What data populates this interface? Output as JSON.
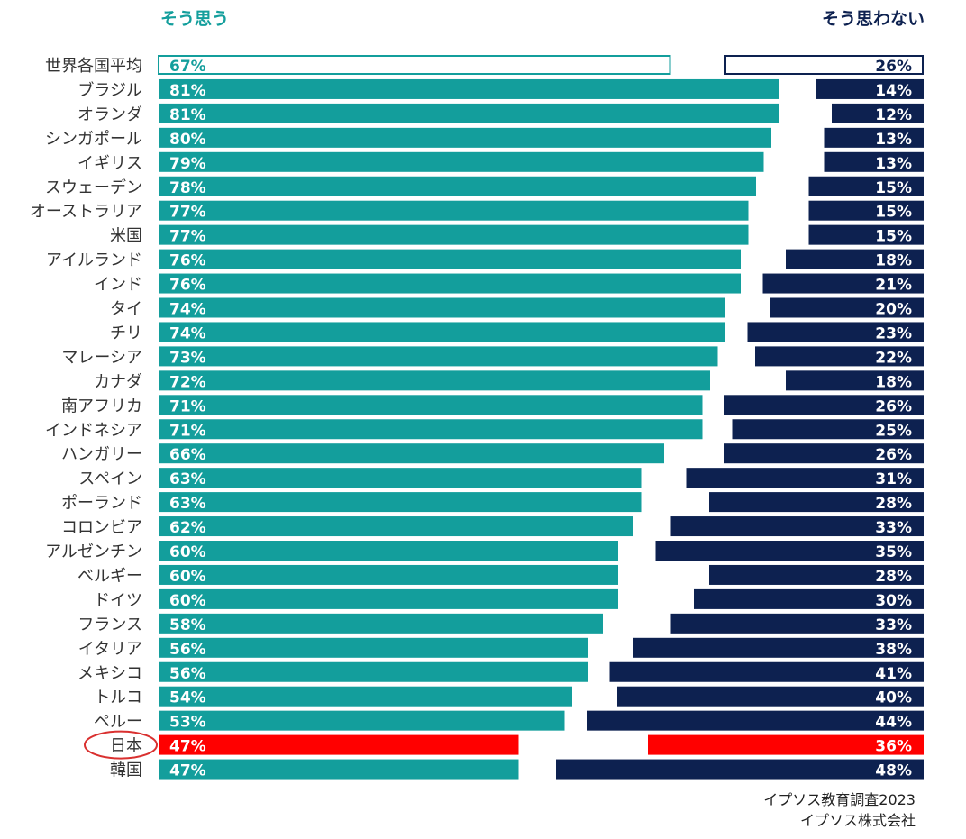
{
  "chart_data": {
    "type": "bar",
    "orientation": "horizontal-diverging",
    "headers": {
      "agree": "そう思う",
      "disagree": "そう思わない"
    },
    "categories": [
      "世界各国平均",
      "ブラジル",
      "オランダ",
      "シンガポール",
      "イギリス",
      "スウェーデン",
      "オーストラリア",
      "米国",
      "アイルランド",
      "インド",
      "タイ",
      "チリ",
      "マレーシア",
      "カナダ",
      "南アフリカ",
      "インドネシア",
      "ハンガリー",
      "スペイン",
      "ポーランド",
      "コロンビア",
      "アルゼンチン",
      "ベルギー",
      "ドイツ",
      "フランス",
      "イタリア",
      "メキシコ",
      "トルコ",
      "ペルー",
      "日本",
      "韓国"
    ],
    "series": [
      {
        "name": "そう思う",
        "values": [
          67,
          81,
          81,
          80,
          79,
          78,
          77,
          77,
          76,
          76,
          74,
          74,
          73,
          72,
          71,
          71,
          66,
          63,
          63,
          62,
          60,
          60,
          60,
          58,
          56,
          56,
          54,
          53,
          47,
          47
        ]
      },
      {
        "name": "そう思わない",
        "values": [
          26,
          14,
          12,
          13,
          13,
          15,
          15,
          15,
          18,
          21,
          20,
          23,
          22,
          18,
          26,
          25,
          26,
          31,
          28,
          33,
          35,
          28,
          30,
          33,
          38,
          41,
          40,
          44,
          36,
          48
        ]
      }
    ],
    "highlight": {
      "average": "世界各国平均",
      "circled": "日本"
    },
    "xlim": [
      0,
      100
    ]
  },
  "colors": {
    "agree": "#139e9c",
    "disagree": "#0d2150",
    "highlight": "#ff0000",
    "circle": "#d9302f",
    "label": "#333333"
  },
  "source": {
    "line1": "イプソス教育調査2023",
    "line2": "イプソス株式会社"
  }
}
